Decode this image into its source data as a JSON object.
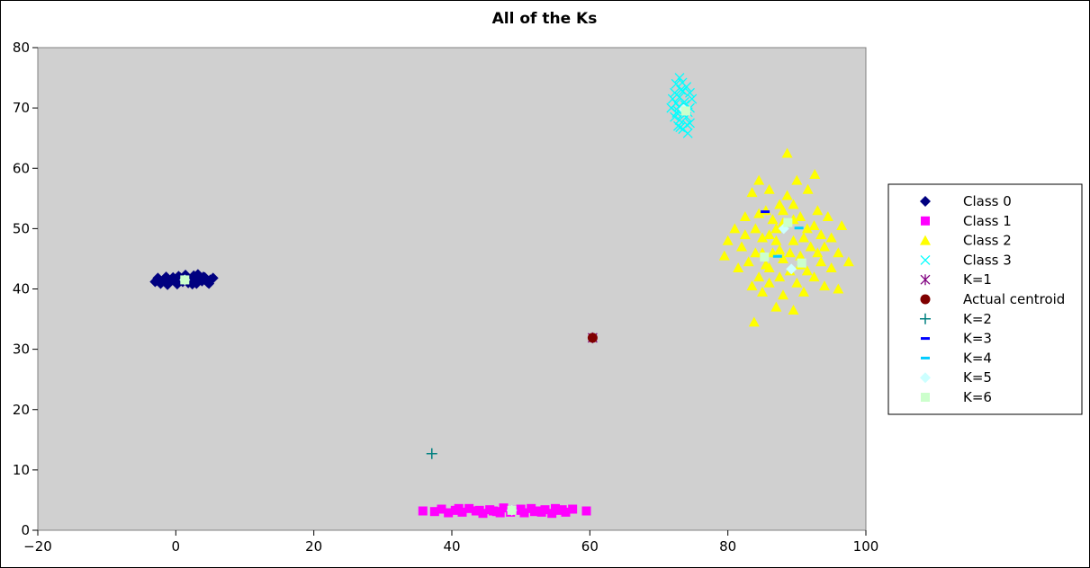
{
  "chart_data": {
    "type": "scatter",
    "title": "All of the Ks",
    "xlabel": "",
    "ylabel": "",
    "xlim": [
      -20,
      100
    ],
    "ylim": [
      0,
      80
    ],
    "xticks": [
      -20,
      0,
      20,
      40,
      60,
      80,
      100
    ],
    "yticks": [
      0,
      10,
      20,
      30,
      40,
      50,
      60,
      70,
      80
    ],
    "xtick_labels": [
      "−20",
      "0",
      "20",
      "40",
      "60",
      "80",
      "100"
    ],
    "ytick_labels": [
      "0",
      "10",
      "20",
      "30",
      "40",
      "50",
      "60",
      "70",
      "80"
    ],
    "grid": false,
    "plot_background": "#d0d0d0",
    "legend_position": "right",
    "series": [
      {
        "name": "Class 0",
        "marker": "diamond",
        "color": "#000080",
        "points": [
          [
            -3,
            41.2
          ],
          [
            -2.6,
            41.8
          ],
          [
            -2.2,
            40.9
          ],
          [
            -1.8,
            41.5
          ],
          [
            -1.4,
            42.0
          ],
          [
            -1,
            41.0
          ],
          [
            -0.6,
            41.6
          ],
          [
            -0.2,
            41.3
          ],
          [
            0.2,
            40.8
          ],
          [
            0.6,
            41.9
          ],
          [
            1,
            41.2
          ],
          [
            1.4,
            42.3
          ],
          [
            1.8,
            41.0
          ],
          [
            2.2,
            41.6
          ],
          [
            2.6,
            42.2
          ],
          [
            3,
            40.9
          ],
          [
            3.4,
            41.7
          ],
          [
            3.8,
            41.3
          ],
          [
            4.2,
            41.9
          ],
          [
            4.6,
            41.1
          ],
          [
            5,
            41.5
          ],
          [
            5.4,
            41.8
          ],
          [
            -2.8,
            41.4
          ],
          [
            -1.2,
            40.7
          ],
          [
            0.4,
            42.1
          ],
          [
            2.4,
            40.8
          ],
          [
            4.0,
            42.0
          ],
          [
            -0.4,
            41.9
          ],
          [
            1.6,
            41.4
          ],
          [
            3.2,
            42.4
          ],
          [
            4.8,
            40.9
          ]
        ]
      },
      {
        "name": "Class 1",
        "marker": "square",
        "color": "#ff00ff",
        "points": [
          [
            35.8,
            3.2
          ],
          [
            37.5,
            3.1
          ],
          [
            38.5,
            3.5
          ],
          [
            39.5,
            2.9
          ],
          [
            40.5,
            3.3
          ],
          [
            41.5,
            3.0
          ],
          [
            42.5,
            3.6
          ],
          [
            43.5,
            3.2
          ],
          [
            44.5,
            2.8
          ],
          [
            45.5,
            3.4
          ],
          [
            46.5,
            3.1
          ],
          [
            47.5,
            3.7
          ],
          [
            48.5,
            3.0
          ],
          [
            49.5,
            3.3
          ],
          [
            50.5,
            2.9
          ],
          [
            51.5,
            3.6
          ],
          [
            52.5,
            3.2
          ],
          [
            53.5,
            3.4
          ],
          [
            54.5,
            2.8
          ],
          [
            55.5,
            3.3
          ],
          [
            56.5,
            3.0
          ],
          [
            57.5,
            3.5
          ],
          [
            59.5,
            3.2
          ],
          [
            44,
            3.3
          ],
          [
            47,
            2.9
          ],
          [
            50,
            3.5
          ],
          [
            53,
            3.0
          ],
          [
            56,
            3.4
          ],
          [
            41,
            3.6
          ],
          [
            46,
            3.2
          ],
          [
            52,
            3.1
          ],
          [
            55,
            3.6
          ]
        ]
      },
      {
        "name": "Class 2",
        "marker": "triangle",
        "color": "#ffff00",
        "points": [
          [
            88.6,
            62.5
          ],
          [
            92.6,
            59.0
          ],
          [
            84.5,
            58.0
          ],
          [
            90,
            58.0
          ],
          [
            86,
            56.5
          ],
          [
            88.6,
            55.5
          ],
          [
            91.6,
            56.5
          ],
          [
            83.5,
            56
          ],
          [
            87.5,
            54
          ],
          [
            85.5,
            53
          ],
          [
            89.5,
            54
          ],
          [
            93,
            53
          ],
          [
            82.5,
            52
          ],
          [
            90.5,
            52
          ],
          [
            94.5,
            52
          ],
          [
            86.5,
            51.5
          ],
          [
            88,
            51
          ],
          [
            96.5,
            50.5
          ],
          [
            81,
            50
          ],
          [
            84,
            50
          ],
          [
            91.5,
            50
          ],
          [
            93.5,
            49
          ],
          [
            80,
            48
          ],
          [
            85,
            48.5
          ],
          [
            87,
            48
          ],
          [
            89.5,
            48
          ],
          [
            95,
            48.5
          ],
          [
            82,
            47
          ],
          [
            92,
            47
          ],
          [
            84,
            46
          ],
          [
            86.5,
            46
          ],
          [
            90.5,
            45.5
          ],
          [
            96,
            46
          ],
          [
            88,
            45
          ],
          [
            79.5,
            45.5
          ],
          [
            83,
            44.5
          ],
          [
            93.5,
            44.5
          ],
          [
            97.5,
            44.5
          ],
          [
            81.5,
            43.5
          ],
          [
            86,
            43.5
          ],
          [
            89,
            43
          ],
          [
            91.5,
            43
          ],
          [
            95,
            43.5
          ],
          [
            84.5,
            42
          ],
          [
            87.5,
            42
          ],
          [
            92.5,
            42
          ],
          [
            83.5,
            40.5
          ],
          [
            86,
            41
          ],
          [
            90,
            41
          ],
          [
            94,
            40.5
          ],
          [
            96,
            40
          ],
          [
            85,
            39.5
          ],
          [
            88,
            39
          ],
          [
            91,
            39.5
          ],
          [
            87,
            37
          ],
          [
            89.5,
            36.5
          ],
          [
            83.8,
            34.5
          ],
          [
            85.5,
            44
          ],
          [
            87,
            50
          ],
          [
            89,
            46
          ],
          [
            91,
            48.5
          ],
          [
            93,
            46
          ],
          [
            86,
            49
          ],
          [
            84.5,
            52.5
          ],
          [
            92.5,
            50.5
          ],
          [
            88,
            53
          ],
          [
            90.5,
            44
          ],
          [
            87.5,
            46.5
          ],
          [
            85,
            46
          ],
          [
            89.5,
            51.5
          ],
          [
            94,
            47
          ],
          [
            82.5,
            49
          ]
        ]
      },
      {
        "name": "Class 3",
        "marker": "x",
        "color": "#00ffff",
        "points": [
          [
            73,
            75
          ],
          [
            72.5,
            74
          ],
          [
            74,
            73.5
          ],
          [
            72.3,
            72.5
          ],
          [
            73.5,
            72.8
          ],
          [
            74.5,
            72.5
          ],
          [
            72,
            71.5
          ],
          [
            73,
            71.8
          ],
          [
            74.8,
            71.5
          ],
          [
            72.5,
            70.8
          ],
          [
            73.8,
            70.5
          ],
          [
            71.8,
            70
          ],
          [
            74.5,
            70
          ],
          [
            72.8,
            69.5
          ],
          [
            73.5,
            69
          ],
          [
            74,
            68.5
          ],
          [
            72.3,
            68.5
          ],
          [
            73,
            68
          ],
          [
            74.5,
            67.5
          ],
          [
            72.8,
            67
          ],
          [
            73.5,
            66.5
          ],
          [
            74.2,
            65.8
          ],
          [
            73.2,
            73
          ],
          [
            73.7,
            71
          ],
          [
            72.6,
            69.2
          ],
          [
            74.2,
            69.3
          ],
          [
            73.1,
            66.8
          ],
          [
            72.9,
            70.2
          ],
          [
            73.4,
            74.2
          ],
          [
            74.1,
            67.2
          ]
        ]
      },
      {
        "name": "K=1",
        "marker": "asterisk",
        "color": "#800080",
        "points": [
          [
            60.4,
            31.9
          ]
        ]
      },
      {
        "name": "Actual centroid",
        "marker": "circle",
        "color": "#800000",
        "points": [
          [
            60.4,
            31.9
          ]
        ]
      },
      {
        "name": "K=2",
        "marker": "plus",
        "color": "#008080",
        "points": [
          [
            37.1,
            12.7
          ],
          [
            73.6,
            69.8
          ]
        ]
      },
      {
        "name": "K=3",
        "marker": "dash",
        "color": "#0000ff",
        "points": [
          [
            85.4,
            52.8
          ],
          [
            73.7,
            69.8
          ],
          [
            48.7,
            3.3
          ]
        ]
      },
      {
        "name": "K=4",
        "marker": "dash",
        "color": "#00ccff",
        "points": [
          [
            90.3,
            50.1
          ],
          [
            87.2,
            45.4
          ],
          [
            73.6,
            69.8
          ],
          [
            48.7,
            3.3
          ]
        ]
      },
      {
        "name": "K=5",
        "marker": "diamond",
        "color": "#ccffff",
        "points": [
          [
            88.1,
            50.0
          ],
          [
            89.2,
            43.3
          ],
          [
            73.6,
            69.8
          ],
          [
            1.3,
            41.5
          ],
          [
            48.7,
            3.3
          ]
        ]
      },
      {
        "name": "K=6",
        "marker": "square",
        "color": "#ccffcc",
        "points": [
          [
            88.7,
            51.0
          ],
          [
            85.3,
            45.3
          ],
          [
            90.7,
            44.3
          ],
          [
            73.9,
            69.5
          ],
          [
            1.3,
            41.5
          ],
          [
            48.7,
            3.3
          ]
        ]
      }
    ]
  }
}
